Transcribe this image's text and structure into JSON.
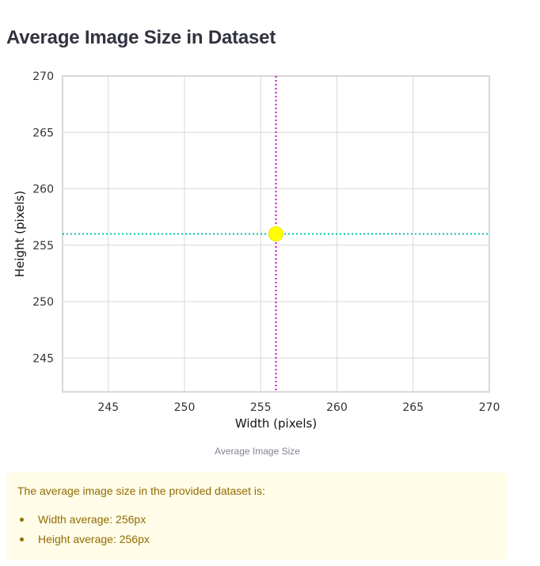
{
  "page": {
    "title": "Average Image Size in Dataset"
  },
  "chart_data": {
    "type": "scatter",
    "title": "",
    "xlabel": "Width (pixels)",
    "ylabel": "Height (pixels)",
    "xlim": [
      242,
      270
    ],
    "ylim": [
      242,
      270
    ],
    "xticks": [
      245,
      250,
      255,
      260,
      265,
      270
    ],
    "yticks": [
      245,
      250,
      255,
      260,
      265,
      270
    ],
    "grid": true,
    "points": [
      {
        "x": 256,
        "y": 256,
        "color": "#ffff00"
      }
    ],
    "reference_lines": [
      {
        "orientation": "vertical",
        "value": 256,
        "color": "#cc00cc",
        "style": "dotted"
      },
      {
        "orientation": "horizontal",
        "value": 256,
        "color": "#00c0b0",
        "style": "dotted"
      }
    ]
  },
  "caption": "Average Image Size",
  "info_box": {
    "intro": "The average image size in the provided dataset is:",
    "items": [
      "Width average: 256px",
      "Height average: 256px"
    ]
  }
}
